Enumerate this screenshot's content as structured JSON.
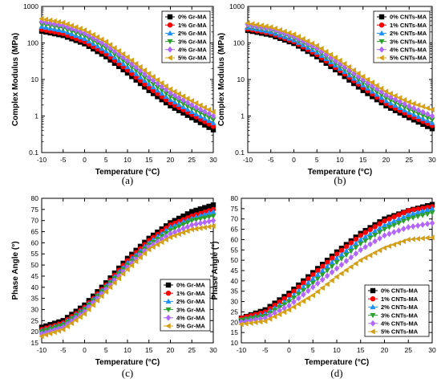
{
  "chart_data": [
    {
      "type": "line",
      "panel_label": "(a)",
      "xlabel": "Temperature (°C)",
      "ylabel": "Complex Modulus (MPa)",
      "yscale": "log",
      "xlim": [
        -10,
        30
      ],
      "ylim": [
        0.1,
        1000
      ],
      "xticks": [
        "-10",
        "-5",
        "0",
        "5",
        "10",
        "15",
        "20",
        "25",
        "30"
      ],
      "yticks": [
        "0.1",
        "1",
        "10",
        "100",
        "1000"
      ],
      "legend_position": "top-right",
      "x": [
        -10,
        -5,
        0,
        5,
        10,
        15,
        20,
        25,
        30
      ],
      "series": [
        {
          "name": "0% Gr-MA",
          "color": "#000000",
          "marker": "square",
          "values": [
            210,
            160,
            95,
            42,
            15,
            5,
            1.9,
            0.9,
            0.42
          ]
        },
        {
          "name": "1% Gr-MA",
          "color": "#ff0000",
          "marker": "circle",
          "values": [
            235,
            180,
            108,
            50,
            18,
            6,
            2.3,
            1.1,
            0.52
          ]
        },
        {
          "name": "2% Gr-MA",
          "color": "#1e90ff",
          "marker": "triangle-up",
          "values": [
            280,
            215,
            130,
            60,
            22,
            7.5,
            2.8,
            1.3,
            0.65
          ]
        },
        {
          "name": "3% Gr-MA",
          "color": "#2ca02c",
          "marker": "triangle-down",
          "values": [
            330,
            255,
            155,
            73,
            27,
            9.2,
            3.4,
            1.6,
            0.8
          ]
        },
        {
          "name": "4% Gr-MA",
          "color": "#b266ff",
          "marker": "diamond",
          "values": [
            385,
            300,
            185,
            88,
            33,
            11.5,
            4.3,
            2,
            1.0
          ]
        },
        {
          "name": "5% Gr-MA",
          "color": "#d4a017",
          "marker": "triangle-left",
          "values": [
            460,
            360,
            225,
            108,
            41,
            14.5,
            5.4,
            2.6,
            1.3
          ]
        }
      ]
    },
    {
      "type": "line",
      "panel_label": "(b)",
      "xlabel": "Temperature (°C)",
      "ylabel": "Complex Modulus (MPa)",
      "yscale": "log",
      "xlim": [
        -10,
        30
      ],
      "ylim": [
        0.1,
        1000
      ],
      "xticks": [
        "-10",
        "-5",
        "0",
        "5",
        "10",
        "15",
        "20",
        "25",
        "30"
      ],
      "yticks": [
        "0.1",
        "1",
        "10",
        "100",
        "1000"
      ],
      "legend_position": "top-right",
      "x": [
        -10,
        -5,
        0,
        5,
        10,
        15,
        20,
        25,
        30
      ],
      "series": [
        {
          "name": "0% CNTs-MA",
          "color": "#000000",
          "marker": "square",
          "values": [
            220,
            165,
            97,
            42,
            15,
            5,
            1.9,
            0.9,
            0.45
          ]
        },
        {
          "name": "1% CNTs-MA",
          "color": "#ff0000",
          "marker": "circle",
          "values": [
            240,
            182,
            108,
            48,
            17.5,
            6,
            2.2,
            1.05,
            0.55
          ]
        },
        {
          "name": "2% CNTs-MA",
          "color": "#1e90ff",
          "marker": "triangle-up",
          "values": [
            265,
            200,
            120,
            55,
            20,
            7,
            2.6,
            1.25,
            0.65
          ]
        },
        {
          "name": "3% CNTs-MA",
          "color": "#2ca02c",
          "marker": "triangle-down",
          "values": [
            290,
            222,
            135,
            63,
            23,
            8.2,
            3.1,
            1.5,
            0.8
          ]
        },
        {
          "name": "4% CNTs-MA",
          "color": "#b266ff",
          "marker": "diamond",
          "values": [
            320,
            245,
            152,
            72,
            27,
            9.8,
            3.8,
            1.85,
            1.0
          ]
        },
        {
          "name": "5% CNTs-MA",
          "color": "#d4a017",
          "marker": "triangle-left",
          "values": [
            350,
            272,
            172,
            84,
            33,
            12,
            4.7,
            2.4,
            1.5
          ]
        }
      ]
    },
    {
      "type": "line",
      "panel_label": "(c)",
      "xlabel": "Temperature (°C)",
      "ylabel": "Phase Angle (°)",
      "xlim": [
        -10,
        30
      ],
      "ylim": [
        15,
        80
      ],
      "xticks": [
        "-10",
        "-5",
        "0",
        "5",
        "10",
        "15",
        "20",
        "25",
        "30"
      ],
      "yticks": [
        "15",
        "20",
        "25",
        "30",
        "35",
        "40",
        "45",
        "50",
        "55",
        "60",
        "65",
        "70",
        "75",
        "80"
      ],
      "legend_position": "center-right",
      "x": [
        -10,
        -5,
        0,
        5,
        10,
        15,
        20,
        25,
        30
      ],
      "series": [
        {
          "name": "0% Gr-MA",
          "color": "#000000",
          "marker": "square",
          "values": [
            22,
            25,
            32,
            42,
            53,
            62,
            69,
            74,
            77
          ]
        },
        {
          "name": "1% Gr-MA",
          "color": "#ff0000",
          "marker": "circle",
          "values": [
            21,
            24,
            31,
            41,
            52,
            61,
            68,
            72,
            75
          ]
        },
        {
          "name": "2% Gr-MA",
          "color": "#1e90ff",
          "marker": "triangle-up",
          "values": [
            20.5,
            23.5,
            30.5,
            40.5,
            51,
            60,
            67,
            71,
            74
          ]
        },
        {
          "name": "3% Gr-MA",
          "color": "#2ca02c",
          "marker": "triangle-down",
          "values": [
            20,
            23,
            30,
            40,
            50,
            59,
            65.5,
            70,
            72
          ]
        },
        {
          "name": "4% Gr-MA",
          "color": "#b266ff",
          "marker": "diamond",
          "values": [
            19,
            22,
            29,
            39,
            49,
            58,
            64,
            68,
            70
          ]
        },
        {
          "name": "5% Gr-MA",
          "color": "#d4a017",
          "marker": "triangle-left",
          "values": [
            18,
            21,
            28,
            38,
            48,
            57,
            62.5,
            66,
            67.5
          ]
        }
      ]
    },
    {
      "type": "line",
      "panel_label": "(d)",
      "xlabel": "Temperature (°C)",
      "ylabel": "Phase Angle (°)",
      "xlim": [
        -10,
        30
      ],
      "ylim": [
        10,
        80
      ],
      "xticks": [
        "-10",
        "-5",
        "0",
        "5",
        "10",
        "15",
        "20",
        "25",
        "30"
      ],
      "yticks": [
        "10",
        "15",
        "20",
        "25",
        "30",
        "35",
        "40",
        "45",
        "50",
        "55",
        "60",
        "65",
        "70",
        "75",
        "80"
      ],
      "legend_position": "lower-right",
      "x": [
        -10,
        -5,
        0,
        5,
        10,
        15,
        20,
        25,
        30
      ],
      "series": [
        {
          "name": "0% CNTs-MA",
          "color": "#000000",
          "marker": "square",
          "values": [
            22,
            26,
            34,
            44,
            54,
            63,
            70,
            74,
            77
          ]
        },
        {
          "name": "1% CNTs-MA",
          "color": "#ff0000",
          "marker": "circle",
          "values": [
            22,
            25,
            33,
            43,
            53,
            62,
            69,
            74,
            76
          ]
        },
        {
          "name": "2% CNTs-MA",
          "color": "#1e90ff",
          "marker": "triangle-up",
          "values": [
            21,
            24,
            31,
            41,
            51,
            60,
            67,
            72,
            75
          ]
        },
        {
          "name": "3% CNTs-MA",
          "color": "#2ca02c",
          "marker": "triangle-down",
          "values": [
            21,
            23,
            30,
            39,
            49,
            58,
            65,
            70,
            73
          ]
        },
        {
          "name": "4% CNTs-MA",
          "color": "#b266ff",
          "marker": "diamond",
          "values": [
            20,
            22,
            28,
            37,
            46,
            55,
            62,
            66,
            68
          ]
        },
        {
          "name": "5% CNTs-MA",
          "color": "#d4a017",
          "marker": "triangle-left",
          "values": [
            19,
            20.5,
            26,
            33,
            42,
            50,
            56,
            60,
            61
          ]
        }
      ]
    }
  ]
}
